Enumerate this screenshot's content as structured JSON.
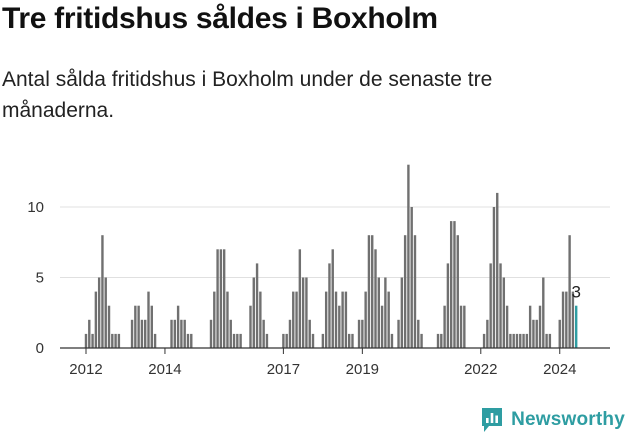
{
  "title": "Tre fritidshus såldes i Boxholm",
  "subtitle": "Antal sålda fritidshus i Boxholm under de senaste tre månaderna.",
  "brand": {
    "name": "Newsworthy",
    "icon": "newsworthy-chart-logo-icon",
    "color": "#2e9da2"
  },
  "colors": {
    "bar": "#707070",
    "highlight": "#2e9da2",
    "grid": "#e0e0e0",
    "axis": "#333333"
  },
  "chart_data": {
    "type": "bar",
    "title": "",
    "xlabel": "",
    "ylabel": "",
    "ylim": [
      0,
      13
    ],
    "yticks": [
      0,
      5,
      10
    ],
    "grid": true,
    "x_start": "2011-12",
    "x_tick_labels": [
      "2012",
      "2014",
      "2017",
      "2019",
      "2022",
      "2024"
    ],
    "x_tick_months": [
      "2012-01",
      "2014-01",
      "2017-01",
      "2019-01",
      "2022-01",
      "2024-01"
    ],
    "highlight_label": "3",
    "values": [
      0,
      1,
      2,
      1,
      4,
      5,
      8,
      5,
      3,
      1,
      1,
      1,
      0,
      0,
      0,
      2,
      3,
      3,
      2,
      2,
      4,
      3,
      1,
      0,
      0,
      0,
      0,
      2,
      2,
      3,
      2,
      2,
      1,
      1,
      0,
      0,
      0,
      0,
      0,
      2,
      4,
      7,
      7,
      7,
      4,
      2,
      1,
      1,
      1,
      0,
      0,
      3,
      5,
      6,
      4,
      2,
      1,
      0,
      0,
      0,
      0,
      1,
      1,
      2,
      4,
      4,
      7,
      5,
      5,
      2,
      1,
      0,
      0,
      1,
      4,
      6,
      7,
      4,
      3,
      4,
      4,
      1,
      1,
      0,
      2,
      2,
      4,
      8,
      8,
      7,
      5,
      3,
      5,
      4,
      1,
      0,
      2,
      5,
      8,
      13,
      10,
      8,
      2,
      1,
      0,
      0,
      0,
      0,
      1,
      1,
      3,
      6,
      9,
      9,
      8,
      3,
      3,
      0,
      0,
      0,
      0,
      0,
      1,
      2,
      6,
      10,
      11,
      6,
      5,
      3,
      1,
      1,
      1,
      1,
      1,
      1,
      3,
      2,
      2,
      3,
      5,
      1,
      1,
      0,
      0,
      2,
      4,
      4,
      8,
      4,
      3
    ]
  }
}
